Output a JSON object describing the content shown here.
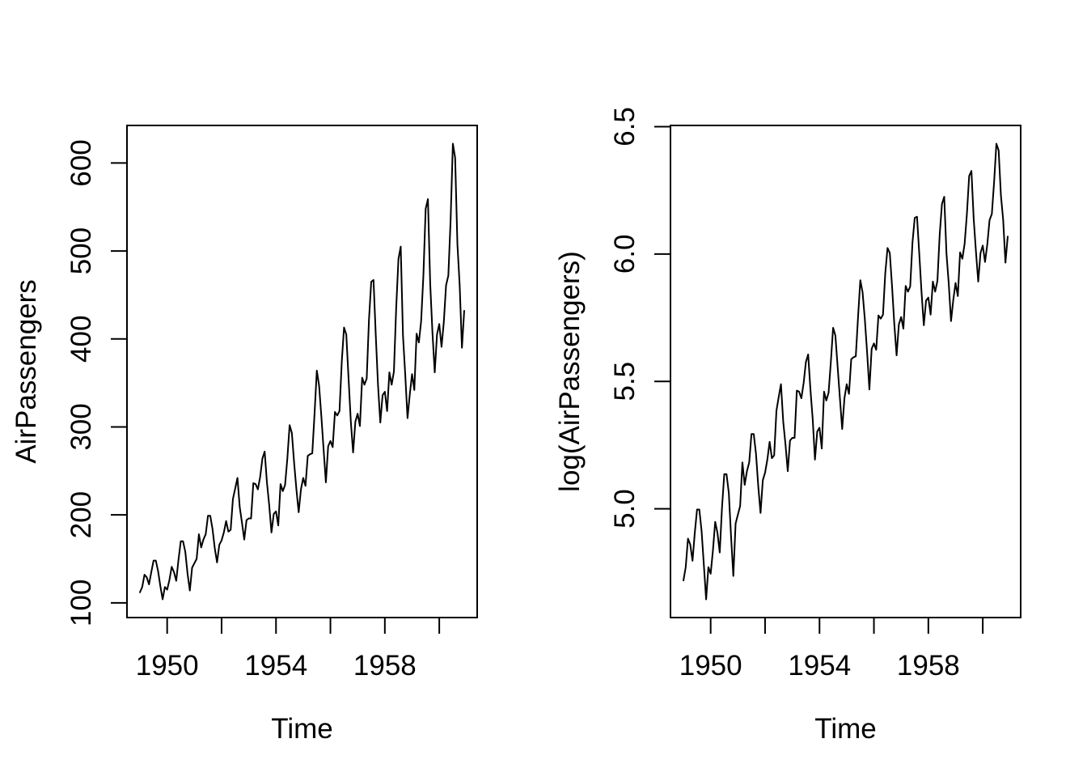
{
  "figure": {
    "background_color": "#ffffff",
    "foreground_color": "#000000",
    "line_width": 2
  },
  "chart_data": [
    {
      "type": "line",
      "title": "",
      "xlabel": "Time",
      "ylabel": "AirPassengers",
      "series_name": "AirPassengers",
      "x_start": 1949,
      "x_step": 0.08333333333333333,
      "xlim": [
        1948.5233,
        1961.3933
      ],
      "ylim": [
        83.28,
        642.72
      ],
      "x_ticks": [
        1950,
        1952,
        1954,
        1956,
        1958,
        1960
      ],
      "x_tick_labels": [
        "1950",
        "",
        "1954",
        "",
        "1958",
        ""
      ],
      "y_ticks": [
        100,
        200,
        300,
        400,
        500,
        600
      ],
      "y_tick_labels": [
        "100",
        "200",
        "300",
        "400",
        "500",
        "600"
      ],
      "grid": false,
      "legend": null,
      "values": [
        112,
        118,
        132,
        129,
        121,
        135,
        148,
        148,
        136,
        119,
        104,
        118,
        115,
        126,
        141,
        135,
        125,
        149,
        170,
        170,
        158,
        133,
        114,
        140,
        145,
        150,
        178,
        163,
        172,
        178,
        199,
        199,
        184,
        162,
        146,
        166,
        171,
        180,
        193,
        181,
        183,
        218,
        230,
        242,
        209,
        191,
        172,
        194,
        196,
        196,
        236,
        235,
        229,
        243,
        264,
        272,
        237,
        211,
        180,
        201,
        204,
        188,
        235,
        227,
        234,
        264,
        302,
        293,
        259,
        229,
        203,
        229,
        242,
        233,
        267,
        269,
        270,
        315,
        364,
        347,
        312,
        274,
        237,
        278,
        284,
        277,
        317,
        313,
        318,
        374,
        413,
        405,
        355,
        306,
        271,
        306,
        315,
        301,
        356,
        348,
        355,
        422,
        465,
        467,
        404,
        347,
        305,
        336,
        340,
        318,
        362,
        348,
        363,
        435,
        491,
        505,
        404,
        359,
        310,
        337,
        360,
        342,
        406,
        396,
        420,
        472,
        548,
        559,
        463,
        407,
        362,
        405,
        417,
        391,
        419,
        461,
        472,
        535,
        622,
        606,
        508,
        461,
        390,
        432
      ]
    },
    {
      "type": "line",
      "title": "",
      "xlabel": "Time",
      "ylabel": "log(AirPassengers)",
      "series_name": "log(AirPassengers)",
      "transform": "ln",
      "values_from_chart": 0,
      "x_start": 1949,
      "x_step": 0.08333333333333333,
      "xlim": [
        1948.5233,
        1961.3933
      ],
      "ylim": [
        4.5729,
        6.5046
      ],
      "x_ticks": [
        1950,
        1952,
        1954,
        1956,
        1958,
        1960
      ],
      "x_tick_labels": [
        "1950",
        "",
        "1954",
        "",
        "1958",
        ""
      ],
      "y_ticks": [
        5.0,
        5.5,
        6.0,
        6.5
      ],
      "y_tick_labels": [
        "5.0",
        "5.5",
        "6.0",
        "6.5"
      ],
      "grid": false,
      "legend": null
    }
  ]
}
